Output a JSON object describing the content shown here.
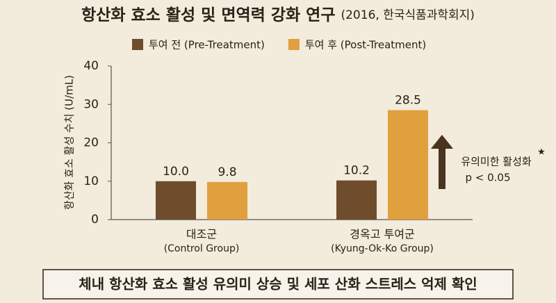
{
  "chart_data": {
    "type": "bar",
    "title": "항산화 효소 활성 및 면역력 강화 연구",
    "subtitle": "(2016, 한국식품과학회지)",
    "y_label": "항산화 효소 활성 수치 (U/mL)",
    "categories": [
      "대조군",
      "경옥고 투여군"
    ],
    "category_sublabels": [
      "(Control Group)",
      "(Kyung-Ok-Ko Group)"
    ],
    "series": [
      {
        "name": "투여 전 (Pre-Treatment)",
        "color": "#6e4c2c",
        "values": [
          10.0,
          10.2
        ],
        "value_labels": [
          "10.0",
          "10.2"
        ]
      },
      {
        "name": "투여 후 (Post-Treatment)",
        "color": "#e0a03e",
        "values": [
          9.8,
          28.5
        ],
        "value_labels": [
          "9.8",
          "28.5"
        ]
      }
    ],
    "ylim": [
      0,
      40
    ],
    "yticks": [
      0,
      10,
      20,
      30,
      40
    ],
    "grid": false,
    "annotation": {
      "text": "유의미한 활성화",
      "star": "★",
      "note": "p < 0.05"
    },
    "conclusion": "체내 항산화 효소 활성 유의미 상승 및 세포 산화 스트레스 억제 확인"
  }
}
